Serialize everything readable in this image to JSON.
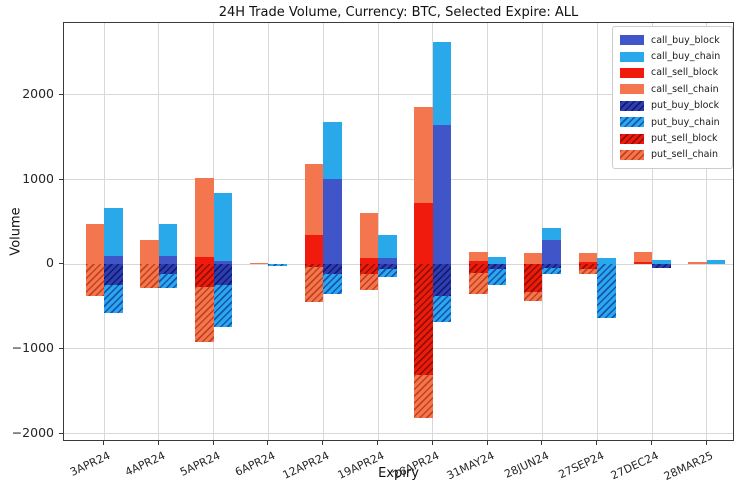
{
  "title": "24H Trade Volume, Currency: BTC, Selected Expire: ALL",
  "chart_data": {
    "type": "bar",
    "stacked": true,
    "grid": true,
    "legend_position": "upper right",
    "title": "24H Trade Volume, Currency: BTC, Selected Expire: ALL",
    "xlabel": "Expiry",
    "ylabel": "Volume",
    "ylim": [
      -2100,
      2850
    ],
    "yticks": [
      -2000,
      -1000,
      0,
      1000,
      2000
    ],
    "categories": [
      "3APR24",
      "4APR24",
      "5APR24",
      "6APR24",
      "12APR24",
      "19APR24",
      "26APR24",
      "31MAY24",
      "28JUN24",
      "27SEP24",
      "27DEC24",
      "28MAR25"
    ],
    "series": [
      {
        "name": "call_buy_block",
        "bar": "buy",
        "hatch": false,
        "color": "#4055c8",
        "hatch_color": "",
        "values": [
          100,
          100,
          40,
          0,
          1010,
          70,
          1650,
          0,
          290,
          0,
          0,
          0
        ]
      },
      {
        "name": "call_buy_chain",
        "bar": "buy",
        "hatch": false,
        "color": "#29a9ea",
        "hatch_color": "",
        "values": [
          560,
          380,
          800,
          0,
          670,
          280,
          980,
          90,
          140,
          70,
          50,
          50
        ]
      },
      {
        "name": "call_sell_block",
        "bar": "sell",
        "hatch": false,
        "color": "#f01b0c",
        "hatch_color": "",
        "values": [
          0,
          0,
          90,
          0,
          340,
          70,
          720,
          40,
          0,
          30,
          25,
          0
        ]
      },
      {
        "name": "call_sell_chain",
        "bar": "sell",
        "hatch": false,
        "color": "#f4764f",
        "hatch_color": "",
        "values": [
          470,
          290,
          930,
          20,
          840,
          540,
          1140,
          100,
          130,
          100,
          115,
          25
        ]
      },
      {
        "name": "put_buy_block",
        "bar": "buy",
        "hatch": true,
        "color": "#2e3db2",
        "hatch_color": "#101d6e",
        "values": [
          -250,
          -120,
          -250,
          0,
          -120,
          -60,
          -370,
          -60,
          -50,
          0,
          -40,
          0
        ]
      },
      {
        "name": "put_buy_chain",
        "bar": "buy",
        "hatch": true,
        "color": "#29a9ea",
        "hatch_color": "#1a50b4",
        "values": [
          -330,
          -160,
          -490,
          -20,
          -230,
          -90,
          -310,
          -180,
          -60,
          -640,
          0,
          0
        ]
      },
      {
        "name": "put_sell_block",
        "bar": "sell",
        "hatch": true,
        "color": "#ee1b0d",
        "hatch_color": "#8f1005",
        "values": [
          0,
          0,
          -270,
          0,
          -30,
          -120,
          -1310,
          -100,
          -330,
          -60,
          0,
          0
        ]
      },
      {
        "name": "put_sell_chain",
        "bar": "sell",
        "hatch": true,
        "color": "#f4764f",
        "hatch_color": "#c2421d",
        "values": [
          -370,
          -280,
          -650,
          0,
          -420,
          -180,
          -510,
          -250,
          -100,
          -50,
          0,
          0
        ]
      }
    ]
  }
}
